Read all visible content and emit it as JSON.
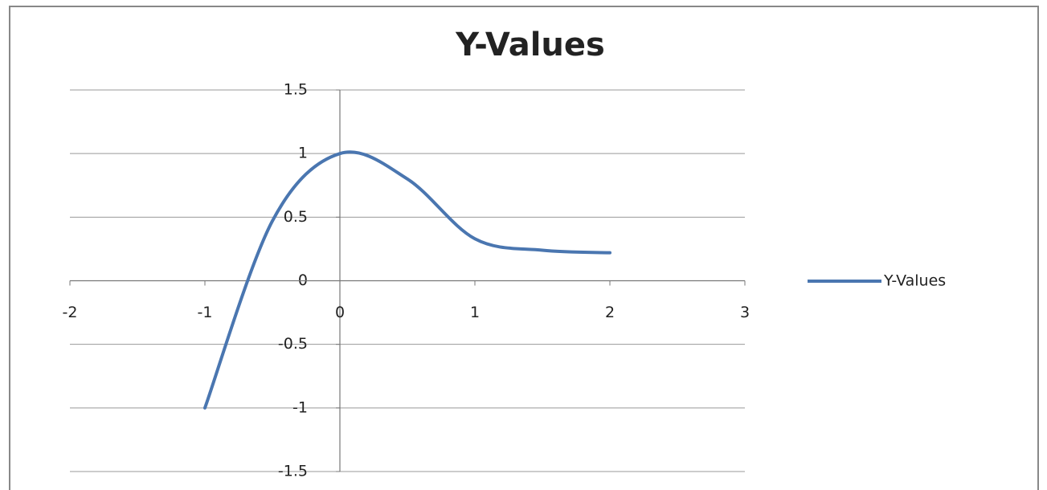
{
  "chart_data": {
    "type": "scatter-smooth-line",
    "title": "Y-Values",
    "x": [
      -1,
      -0.5,
      0,
      0.5,
      1,
      1.5,
      2
    ],
    "series": [
      {
        "name": "Y-Values",
        "color": "#4a76b0",
        "values": [
          -1,
          0.47,
          1,
          0.8,
          0.33,
          0.24,
          0.22
        ]
      }
    ],
    "xlim": [
      -2,
      3
    ],
    "xticks": [
      -2,
      -1,
      0,
      1,
      2,
      3
    ],
    "ylim": [
      -1.5,
      1.5
    ],
    "yticks": [
      -1.5,
      -1,
      -0.5,
      0,
      0.5,
      1,
      1.5
    ],
    "grid": true,
    "legend": "right"
  }
}
